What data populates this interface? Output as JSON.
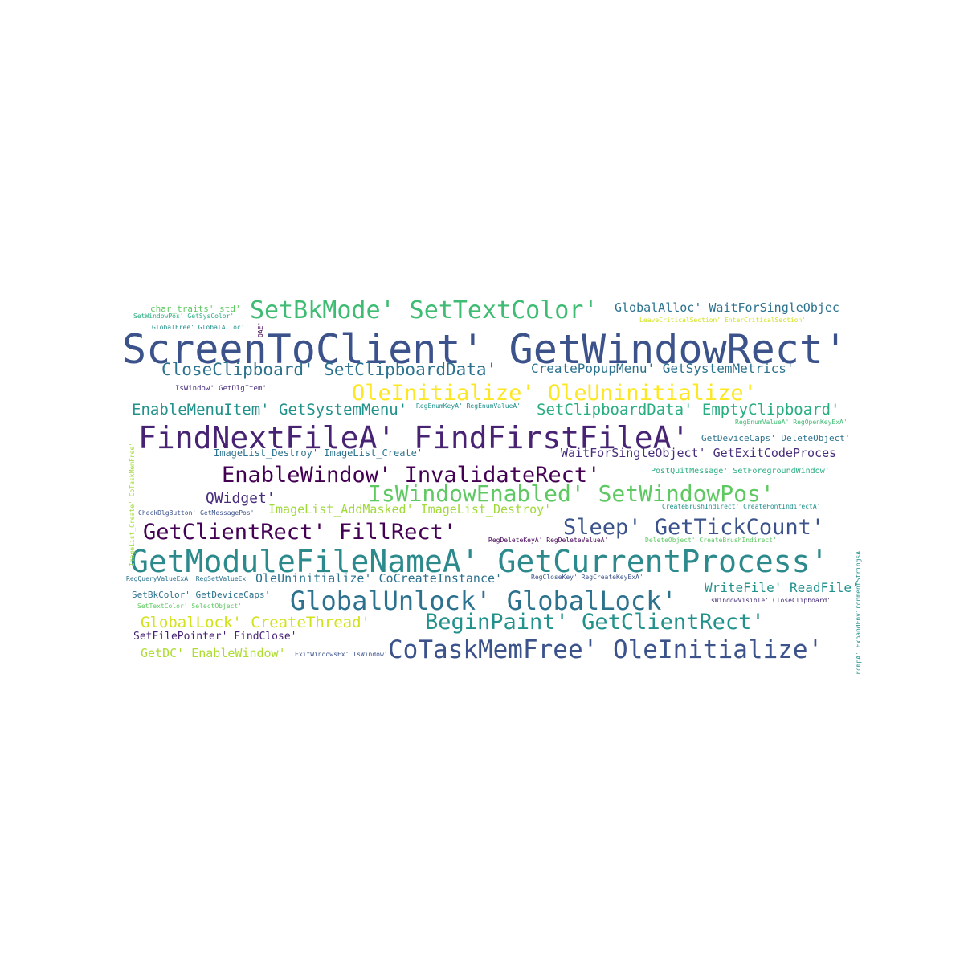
{
  "palette": {
    "p1": "#440154",
    "p2": "#472d7b",
    "p3": "#3b528b",
    "p4": "#2c728e",
    "p5": "#21918c",
    "p6": "#28ae80",
    "p7": "#5ec962",
    "p8": "#addc30",
    "p9": "#fde725"
  },
  "words": [
    {
      "text": "ScreenToClient' GetWindowRect'",
      "color": "#3b528b"
    },
    {
      "text": "GetModuleFileNameA' GetCurrentProcess'",
      "color": "#2c8a8d"
    },
    {
      "text": "FindNextFileA' FindFirstFileA'",
      "color": "#482374"
    },
    {
      "text": "SetBkMode' SetTextColor'",
      "color": "#3fbc73"
    },
    {
      "text": "IsWindowEnabled' SetWindowPos'",
      "color": "#5ec962"
    },
    {
      "text": "GlobalUnlock' GlobalLock'",
      "color": "#2c728e"
    },
    {
      "text": "CoTaskMemFree' OleInitialize'",
      "color": "#3b528b"
    },
    {
      "text": "EnableWindow' InvalidateRect'",
      "color": "#440154"
    },
    {
      "text": "OleInitialize' OleUninitialize'",
      "color": "#fde725"
    },
    {
      "text": "BeginPaint' GetClientRect'",
      "color": "#21918c"
    },
    {
      "text": "GetClientRect' FillRect'",
      "color": "#440154"
    },
    {
      "text": "Sleep' GetTickCount'",
      "color": "#3b528b"
    },
    {
      "text": "CloseClipboard' SetClipboardData'",
      "color": "#2c728e"
    },
    {
      "text": "EnableMenuItem' GetSystemMenu'",
      "color": "#21918c"
    },
    {
      "text": "SetClipboardData' EmptyClipboard'",
      "color": "#28ae80"
    },
    {
      "text": "CreatePopupMenu' GetSystemMetrics'",
      "color": "#2c728e"
    },
    {
      "text": "GlobalAlloc' WaitForSingleObjec",
      "color": "#2c728e"
    },
    {
      "text": "GlobalLock' CreateThread'",
      "color": "#d2e21b"
    },
    {
      "text": "QWidget'",
      "color": "#472d7b"
    },
    {
      "text": "OleUninitialize' CoCreateInstance'",
      "color": "#2c728e"
    },
    {
      "text": "WaitForSingleObject' GetExitCodeProces",
      "color": "#472d7b"
    },
    {
      "text": "WriteFile' ReadFile'",
      "color": "#21918c"
    },
    {
      "text": "ImageList_AddMasked' ImageList_Destroy'",
      "color": "#a0da39"
    },
    {
      "text": "GetDC' EnableWindow'",
      "color": "#addc30"
    },
    {
      "text": "SetFilePointer' FindClose'",
      "color": "#482374"
    },
    {
      "text": "ImageList_Destroy' ImageList_Create'",
      "color": "#2c728e"
    },
    {
      "text": "char_traits' std'",
      "color": "#5ec962"
    },
    {
      "text": "SetBkColor' GetDeviceCaps'",
      "color": "#2c728e"
    },
    {
      "text": "IsWindow' GetDlgItem'",
      "color": "#472d7b"
    },
    {
      "text": "PostQuitMessage' SetForegroundWindow'",
      "color": "#28ae80"
    },
    {
      "text": "GetDeviceCaps' DeleteObject'",
      "color": "#2c728e"
    },
    {
      "text": "SetWindowPos' GetSysColor'",
      "color": "#28ae80"
    },
    {
      "text": "GlobalFree' GlobalAlloc'",
      "color": "#21918c"
    },
    {
      "text": "LeaveCriticalSection' EnterCriticalSection'",
      "color": "#d2e21b"
    },
    {
      "text": "RegEnumValueA' RegOpenKeyExA'",
      "color": "#3fbc73"
    },
    {
      "text": "RegEnumKeyA' RegEnumValueA'",
      "color": "#21918c"
    },
    {
      "text": "CheckDlgButton' GetMessagePos'",
      "color": "#3b528b"
    },
    {
      "text": "CreateBrushIndirect' CreateFontIndirectA'",
      "color": "#21918c"
    },
    {
      "text": "RegDeleteKeyA' RegDeleteValueA'",
      "color": "#440154"
    },
    {
      "text": "DeleteObject' CreateBrushIndirect'",
      "color": "#5ec962"
    },
    {
      "text": "RegQueryValueExA' RegSetValueEx",
      "color": "#2c728e"
    },
    {
      "text": "RegCloseKey' RegCreateKeyExA'",
      "color": "#3b528b"
    },
    {
      "text": "IsWindowVisible' CloseClipboard'",
      "color": "#472d7b"
    },
    {
      "text": "SetTextColor' SelectObject'",
      "color": "#5ec962"
    },
    {
      "text": "ExitWindowsEx' IsWindow'",
      "color": "#3b528b"
    },
    {
      "text": "ImageList_Create' CoTaskMemFree'",
      "color": "#a0da39"
    },
    {
      "text": "rcmpA' ExpandEnvironmentStringsA'",
      "color": "#21918c"
    },
    {
      "text": "QAE'",
      "color": "#440154"
    }
  ]
}
